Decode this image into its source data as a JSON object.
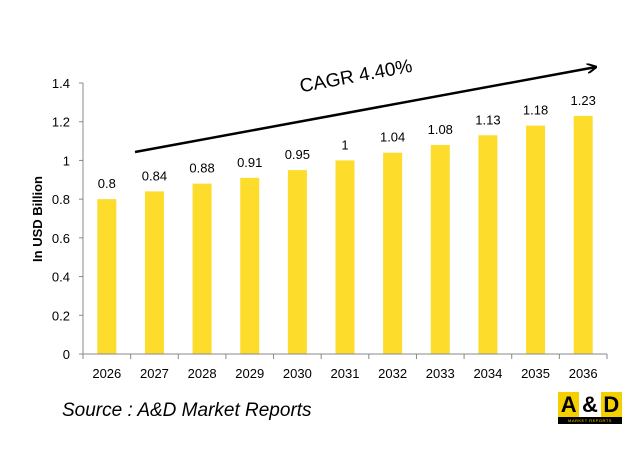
{
  "chart_data": {
    "type": "bar",
    "categories": [
      "2026",
      "2027",
      "2028",
      "2029",
      "2030",
      "2031",
      "2032",
      "2033",
      "2034",
      "2035",
      "2036"
    ],
    "values": [
      0.8,
      0.84,
      0.88,
      0.91,
      0.95,
      1,
      1.04,
      1.08,
      1.13,
      1.18,
      1.23
    ],
    "data_labels": [
      "0.8",
      "0.84",
      "0.88",
      "0.91",
      "0.95",
      "1",
      "1.04",
      "1.08",
      "1.13",
      "1.18",
      "1.23"
    ],
    "ylabel": "In USD Billion",
    "xlabel": "",
    "ylim": [
      0,
      1.4
    ],
    "yticks": [
      "0",
      "0.2",
      "0.4",
      "0.6",
      "0.8",
      "1",
      "1.2",
      "1.4"
    ],
    "grid": false,
    "bar_color": "#FDDC2C",
    "annotation": "CAGR 4.40%"
  },
  "source": "Source : A&D Market Reports",
  "logo": {
    "left": "A",
    "amp": "&",
    "right": "D",
    "sub": "MARKET REPORTS",
    "color": "#F5D000"
  }
}
